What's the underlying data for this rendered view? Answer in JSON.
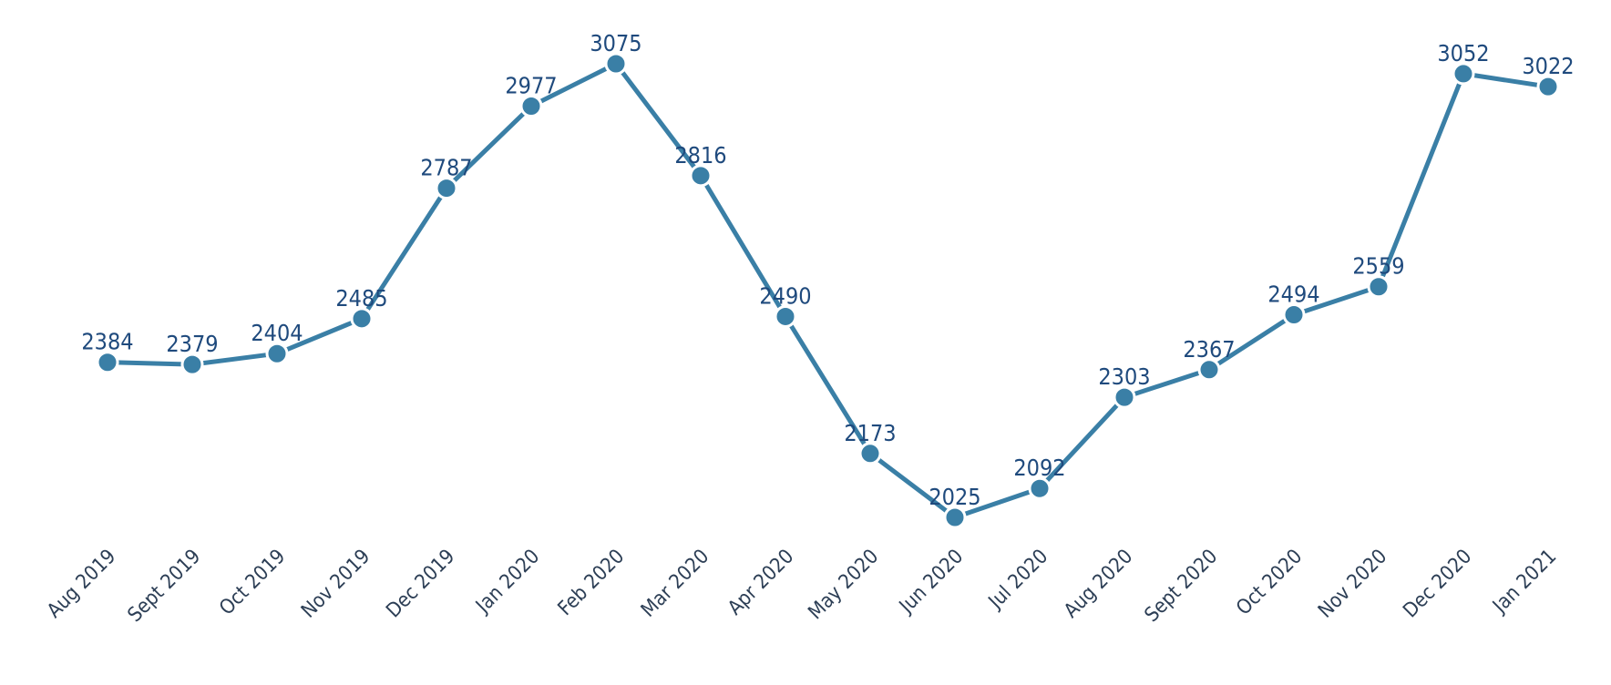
{
  "chart_data": {
    "type": "line",
    "title": "",
    "xlabel": "",
    "ylabel": "",
    "categories": [
      "Aug 2019",
      "Sept 2019",
      "Oct 2019",
      "Nov 2019",
      "Dec 2019",
      "Jan 2020",
      "Feb 2020",
      "Mar 2020",
      "Apr 2020",
      "May 2020",
      "Jun 2020",
      "Jul 2020",
      "Aug 2020",
      "Sept 2020",
      "Oct 2020",
      "Nov 2020",
      "Dec 2020",
      "Jan 2021"
    ],
    "series": [
      {
        "values": [
          2384,
          2379,
          2404,
          2485,
          2787,
          2977,
          3075,
          2816,
          2490,
          2173,
          2025,
          2092,
          2303,
          2367,
          2494,
          2559,
          3052,
          3022
        ]
      }
    ],
    "ylim": [
      2025,
      3075
    ],
    "grid": false,
    "legend": "none",
    "data_labels": true
  },
  "colors": {
    "line": "#3a7fa6",
    "marker": "#3a7fa6",
    "label": "#1f4a7d",
    "tick": "#2c3e55"
  }
}
